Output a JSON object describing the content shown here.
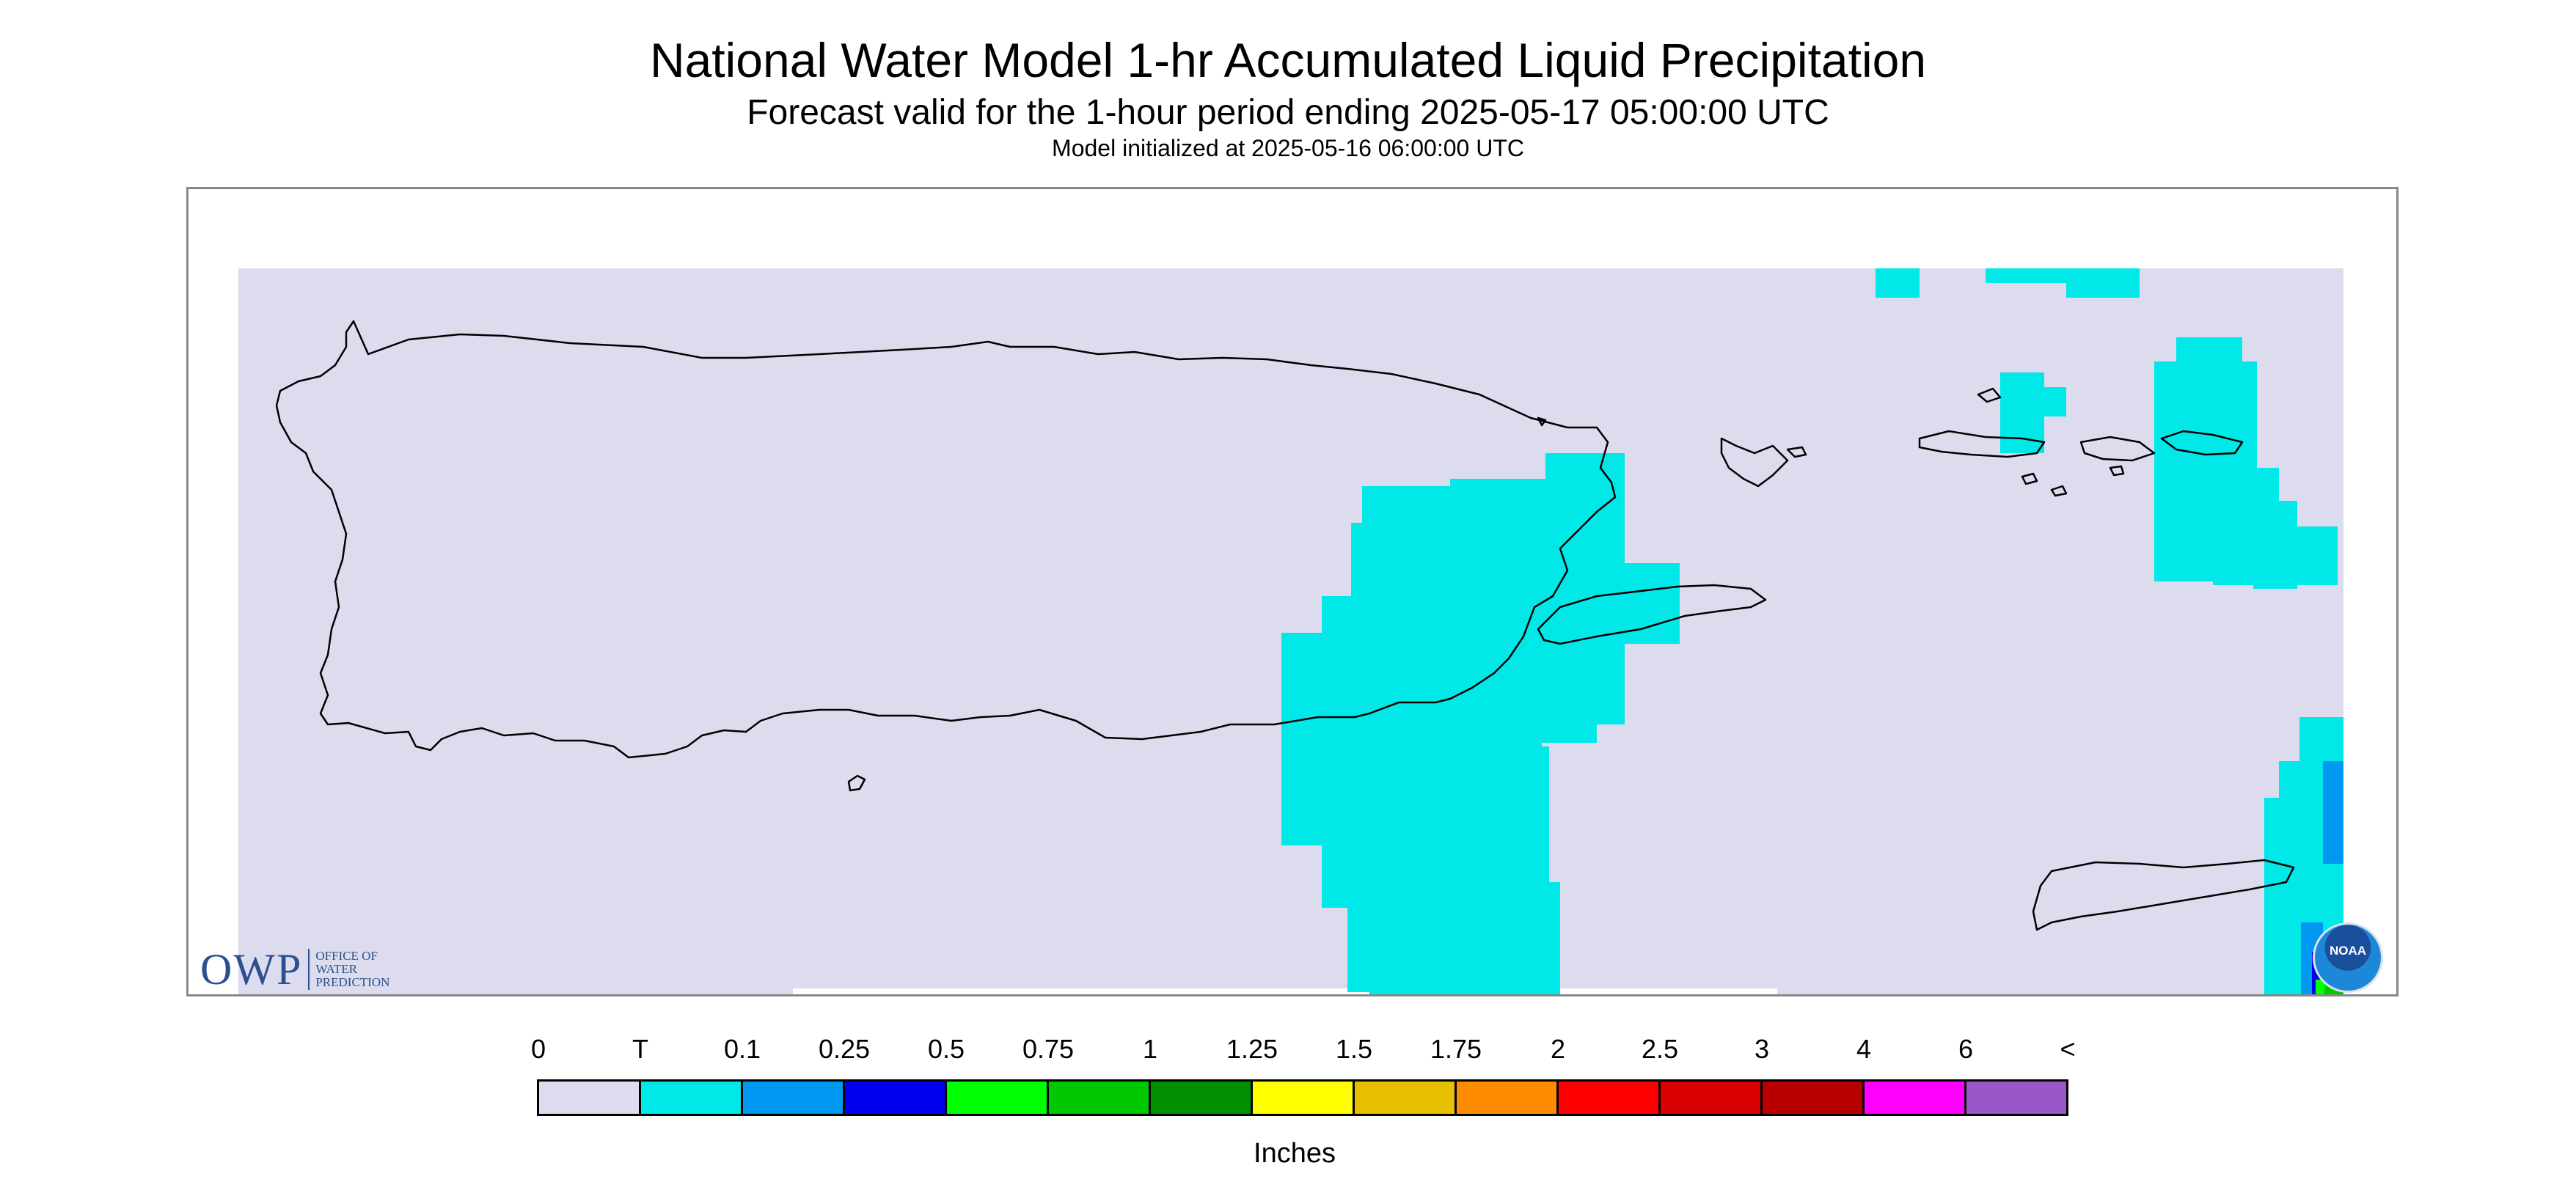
{
  "header": {
    "title": "National Water Model 1-hr Accumulated Liquid Precipitation",
    "subtitle": "Forecast valid for the 1-hour period ending 2025-05-17 05:00:00 UTC",
    "initialized": "Model initialized at 2025-05-16 06:00:00 UTC"
  },
  "map": {
    "background_color": "#dcdcee",
    "coastline_color": "#000000"
  },
  "logos": {
    "owp_mark": "OWP",
    "owp_line1": "OFFICE OF",
    "owp_line2": "WATER",
    "owp_line3": "PREDICTION",
    "noaa": "NOAA"
  },
  "legend": {
    "unit": "Inches",
    "labels": [
      "0",
      "T",
      "0.1",
      "0.25",
      "0.5",
      "0.75",
      "1",
      "1.25",
      "1.5",
      "1.75",
      "2",
      "2.5",
      "3",
      "4",
      "6",
      "<"
    ],
    "colors": [
      "#dcdcee",
      "#00e8e8",
      "#0098f0",
      "#0000ee",
      "#00ff00",
      "#00c800",
      "#009000",
      "#ffff00",
      "#e6c000",
      "#ff8c00",
      "#ff0000",
      "#d80000",
      "#b80000",
      "#ff00ff",
      "#9858c8"
    ]
  }
}
